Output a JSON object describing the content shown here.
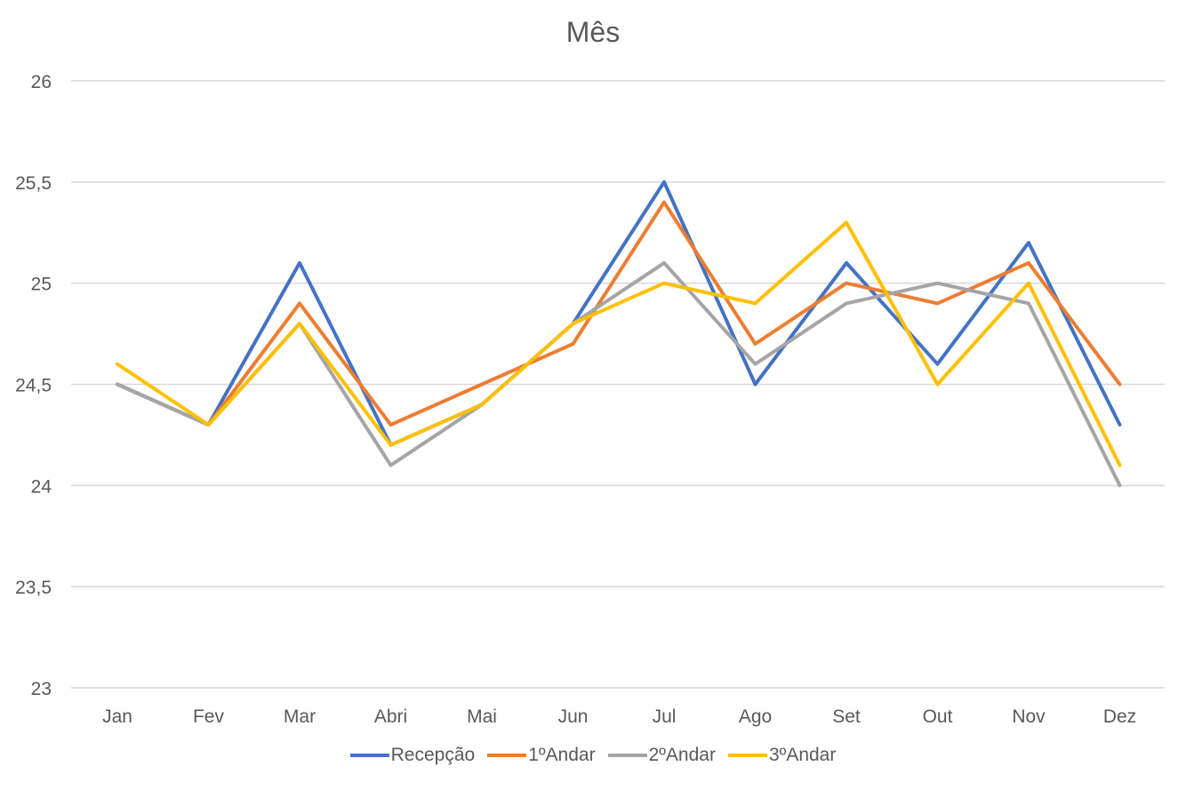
{
  "chart_data": {
    "type": "line",
    "title": "Mês",
    "xlabel": "",
    "ylabel": "",
    "categories": [
      "Jan",
      "Fev",
      "Mar",
      "Abri",
      "Mai",
      "Jun",
      "Jul",
      "Ago",
      "Set",
      "Out",
      "Nov",
      "Dez"
    ],
    "ylim": [
      23,
      26
    ],
    "yticks": [
      "23",
      "23,5",
      "24",
      "24,5",
      "25",
      "25,5",
      "26"
    ],
    "grid": true,
    "legend_position": "bottom",
    "series": [
      {
        "name": "Recepção",
        "color": "#4472C4",
        "values": [
          24.5,
          24.3,
          25.1,
          24.2,
          24.4,
          24.8,
          25.5,
          24.5,
          25.1,
          24.6,
          25.2,
          24.3
        ]
      },
      {
        "name": "1ºAndar",
        "color": "#ED7D31",
        "values": [
          24.5,
          24.3,
          24.9,
          24.3,
          24.5,
          24.7,
          25.4,
          24.7,
          25.0,
          24.9,
          25.1,
          24.5
        ]
      },
      {
        "name": "2ºAndar",
        "color": "#A5A5A5",
        "values": [
          24.5,
          24.3,
          24.8,
          24.1,
          24.4,
          24.8,
          25.1,
          24.6,
          24.9,
          25.0,
          24.9,
          24.0
        ]
      },
      {
        "name": "3ºAndar",
        "color": "#FFC000",
        "values": [
          24.6,
          24.3,
          24.8,
          24.2,
          24.4,
          24.8,
          25.0,
          24.9,
          25.3,
          24.5,
          25.0,
          24.1
        ]
      }
    ]
  }
}
